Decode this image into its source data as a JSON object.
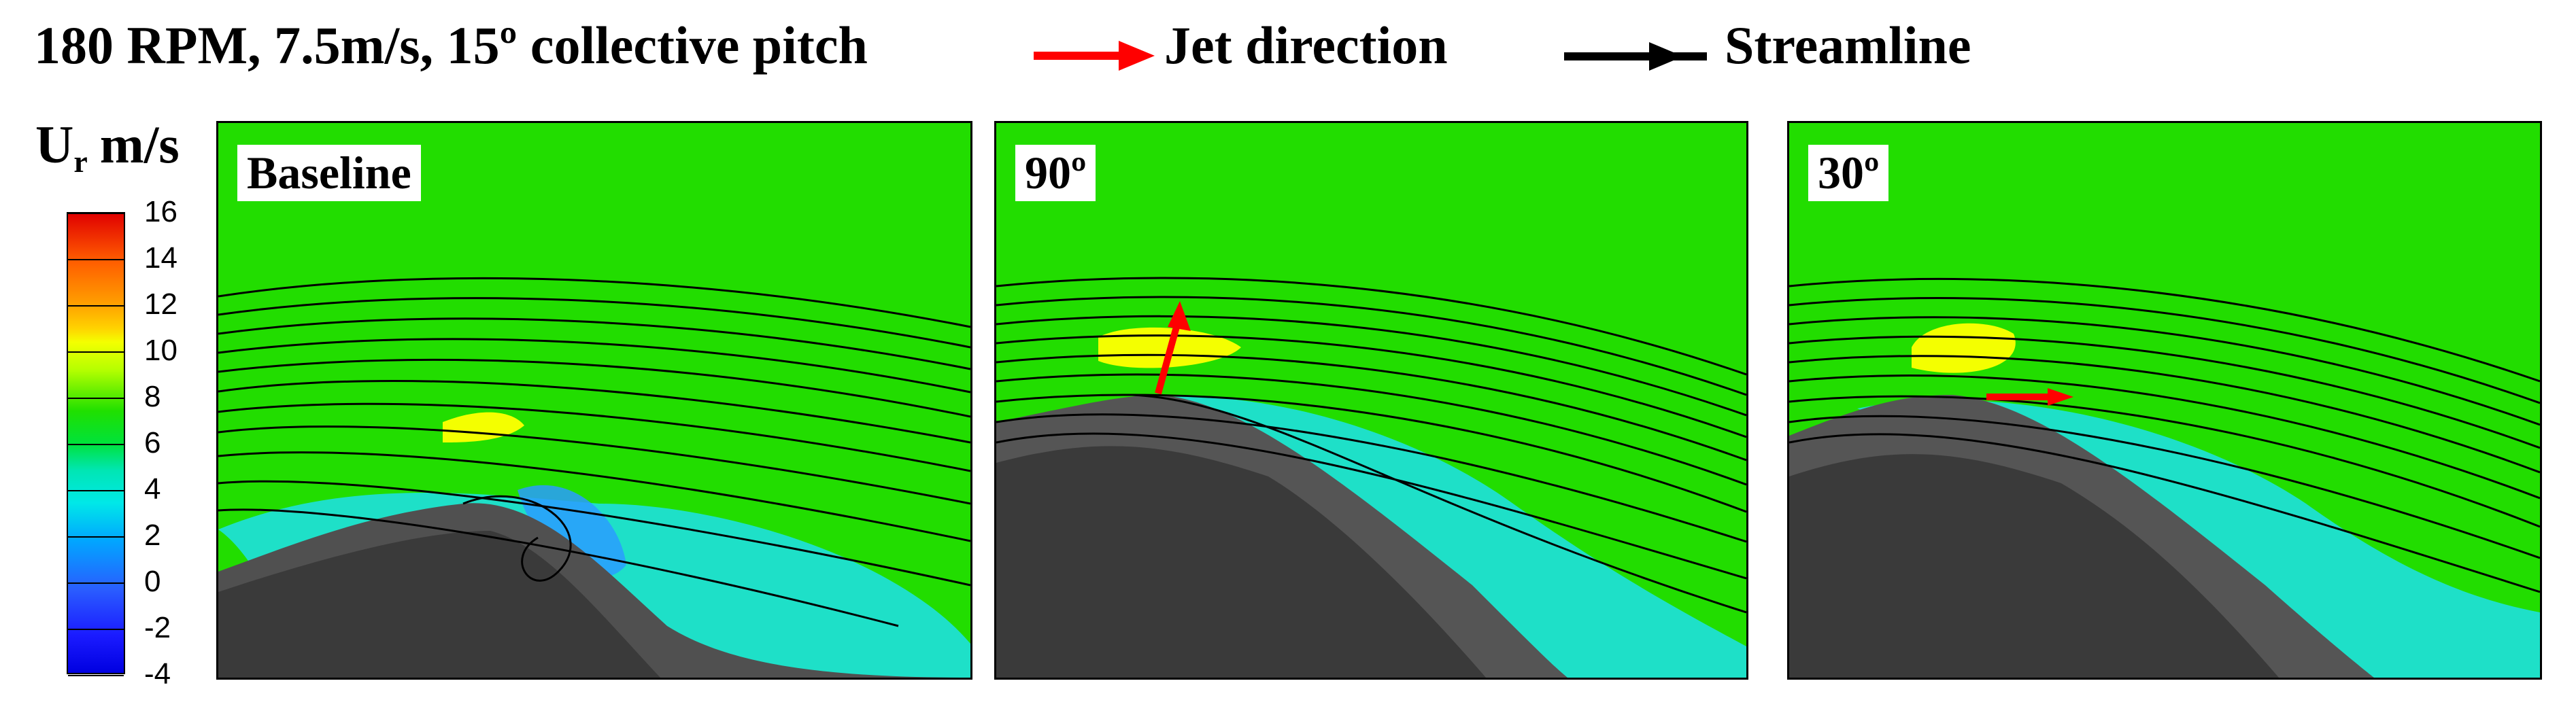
{
  "header": {
    "title": "180 RPM, 7.5m/s, 15º collective pitch",
    "legend": [
      {
        "label": "Jet direction",
        "color": "#ff0000"
      },
      {
        "label": "Streamline",
        "color": "#000000"
      }
    ]
  },
  "colorbar": {
    "title": "U",
    "title_subscript": "r",
    "title_unit": "m/s",
    "ticks": [
      "16",
      "14",
      "12",
      "10",
      "8",
      "6",
      "4",
      "2",
      "0",
      "-2",
      "-4"
    ],
    "range": [
      -4,
      16
    ]
  },
  "panels": [
    {
      "label": "Baseline",
      "jet": null
    },
    {
      "label": "90º",
      "jet": "90º"
    },
    {
      "label": "30º",
      "jet": "30º"
    }
  ]
}
